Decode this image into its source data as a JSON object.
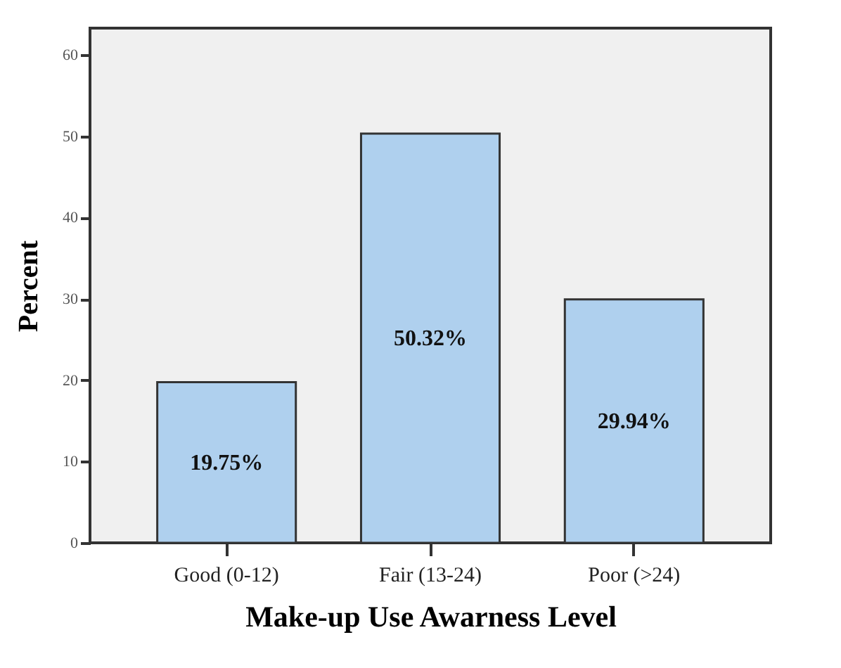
{
  "chart_data": {
    "type": "bar",
    "categories": [
      "Good (0-12)",
      "Fair (13-24)",
      "Poor (>24)"
    ],
    "values": [
      19.75,
      50.32,
      29.94
    ],
    "value_labels": [
      "19.75%",
      "50.32%",
      "29.94%"
    ],
    "color": "#afd0ee",
    "xlabel": "Make-up Use Awarness Level",
    "ylabel": "Percent",
    "ylim": [
      0,
      63.3
    ],
    "yticks": [
      0,
      10,
      20,
      30,
      40,
      50,
      60
    ],
    "grid": false
  }
}
